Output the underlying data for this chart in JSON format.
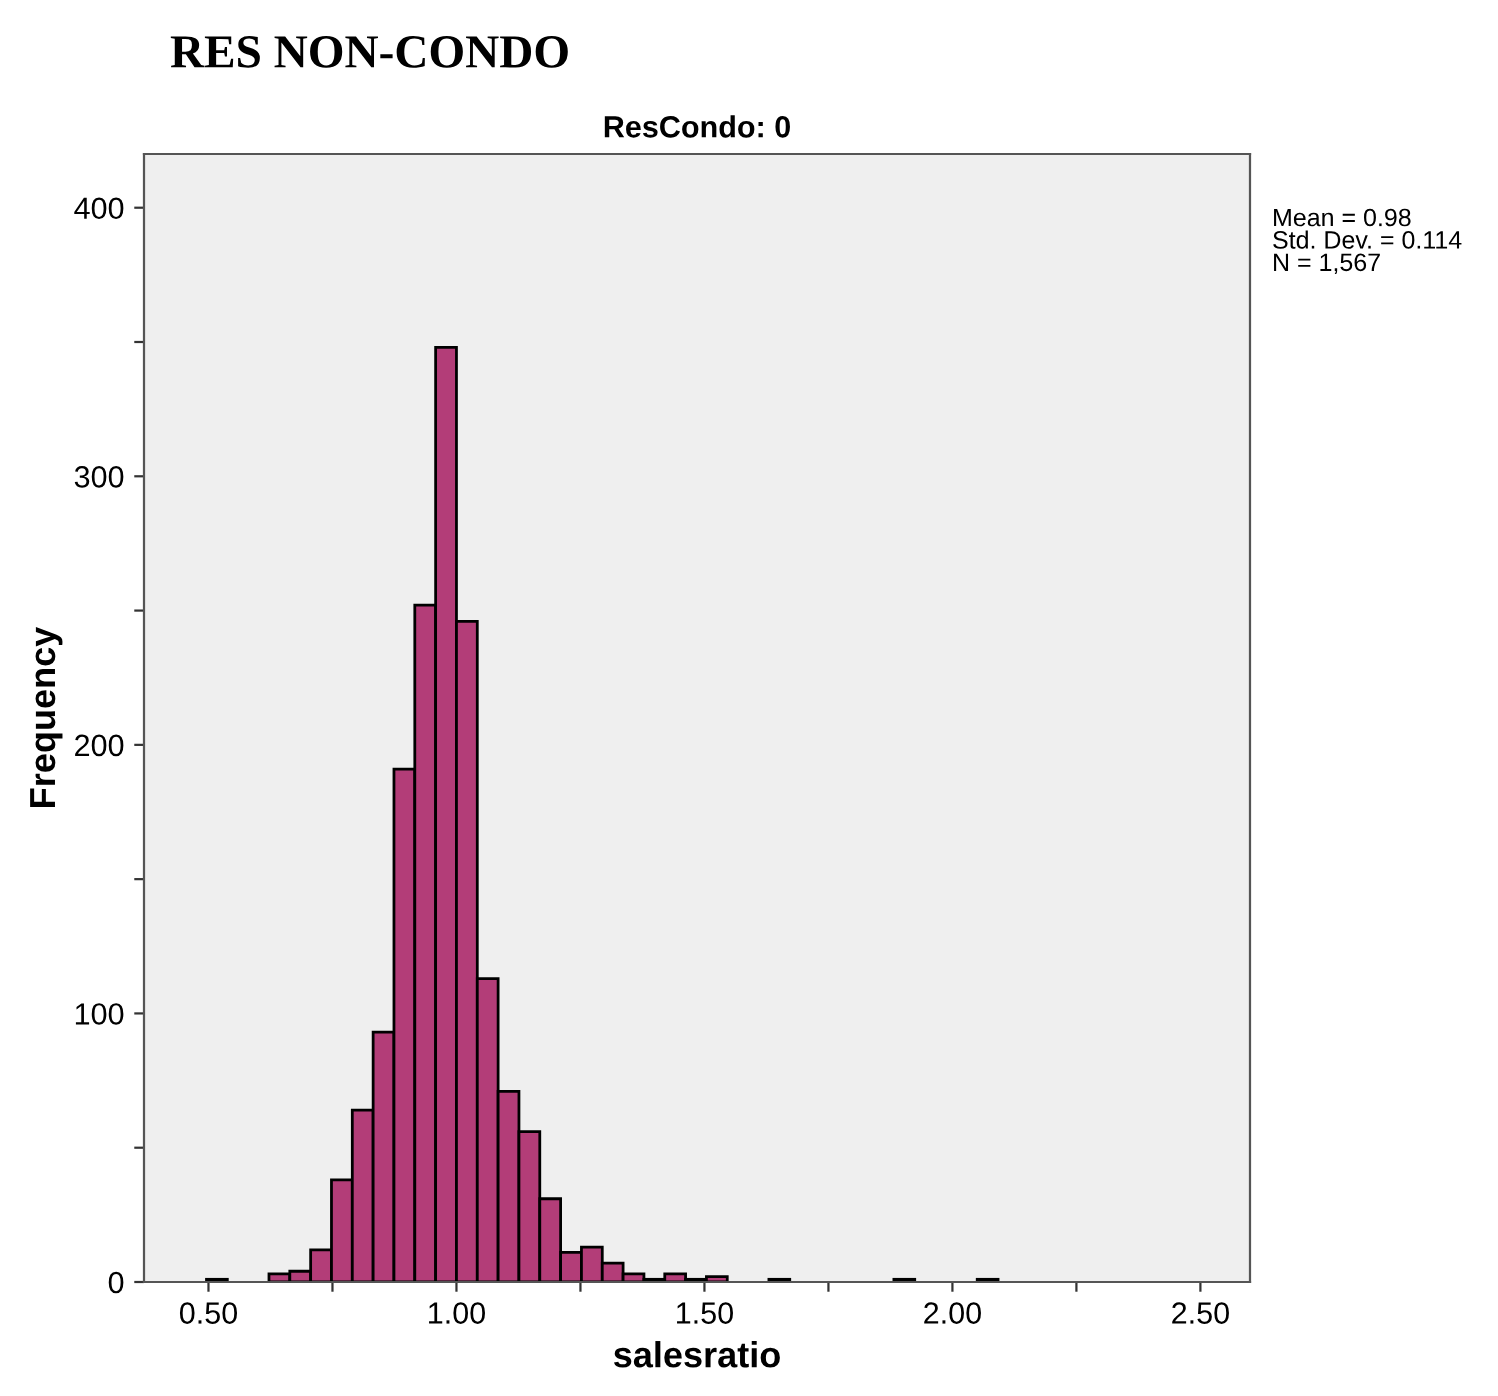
{
  "chart_data": {
    "type": "histogram",
    "title": "RES NON-CONDO",
    "subtitle": "ResCondo: 0",
    "xlabel": "salesratio",
    "ylabel": "Frequency",
    "bins": [
      0.496,
      0.538,
      0.58,
      0.622,
      0.664,
      0.706,
      0.748,
      0.79,
      0.832,
      0.874,
      0.916,
      0.958,
      1.0,
      1.042,
      1.084,
      1.126,
      1.168,
      1.21,
      1.252,
      1.294,
      1.336,
      1.378,
      1.42,
      1.462,
      1.504,
      1.546,
      1.588,
      1.63,
      1.672,
      1.714,
      1.756,
      1.798,
      1.84,
      1.882,
      1.924,
      1.966,
      2.008,
      2.05,
      2.092
    ],
    "values": [
      1,
      0,
      0,
      3,
      4,
      12,
      38,
      64,
      93,
      191,
      252,
      348,
      246,
      113,
      71,
      56,
      31,
      11,
      13,
      7,
      3,
      1,
      3,
      1,
      2,
      0,
      0,
      1,
      0,
      0,
      0,
      0,
      0,
      1,
      0,
      0,
      0,
      1
    ],
    "color": "#b33d78",
    "xlim": [
      0.37,
      2.6
    ],
    "ylim": [
      0,
      420
    ],
    "xticks": [
      {
        "value": 0.5,
        "label": "0.50"
      },
      {
        "value": 0.75,
        "label": null
      },
      {
        "value": 1.0,
        "label": "1.00"
      },
      {
        "value": 1.25,
        "label": null
      },
      {
        "value": 1.5,
        "label": "1.50"
      },
      {
        "value": 1.75,
        "label": null
      },
      {
        "value": 2.0,
        "label": "2.00"
      },
      {
        "value": 2.25,
        "label": null
      },
      {
        "value": 2.5,
        "label": "2.50"
      }
    ],
    "yticks": [
      0,
      {
        "value": 50,
        "label": null
      },
      100,
      {
        "value": 150,
        "label": null
      },
      200,
      {
        "value": 250,
        "label": null
      },
      300,
      {
        "value": 350,
        "label": null
      },
      400
    ],
    "grid": false,
    "annotations": [
      "Mean = 0.98\nStd. Dev. = 0.114\nN = 1,567"
    ]
  }
}
